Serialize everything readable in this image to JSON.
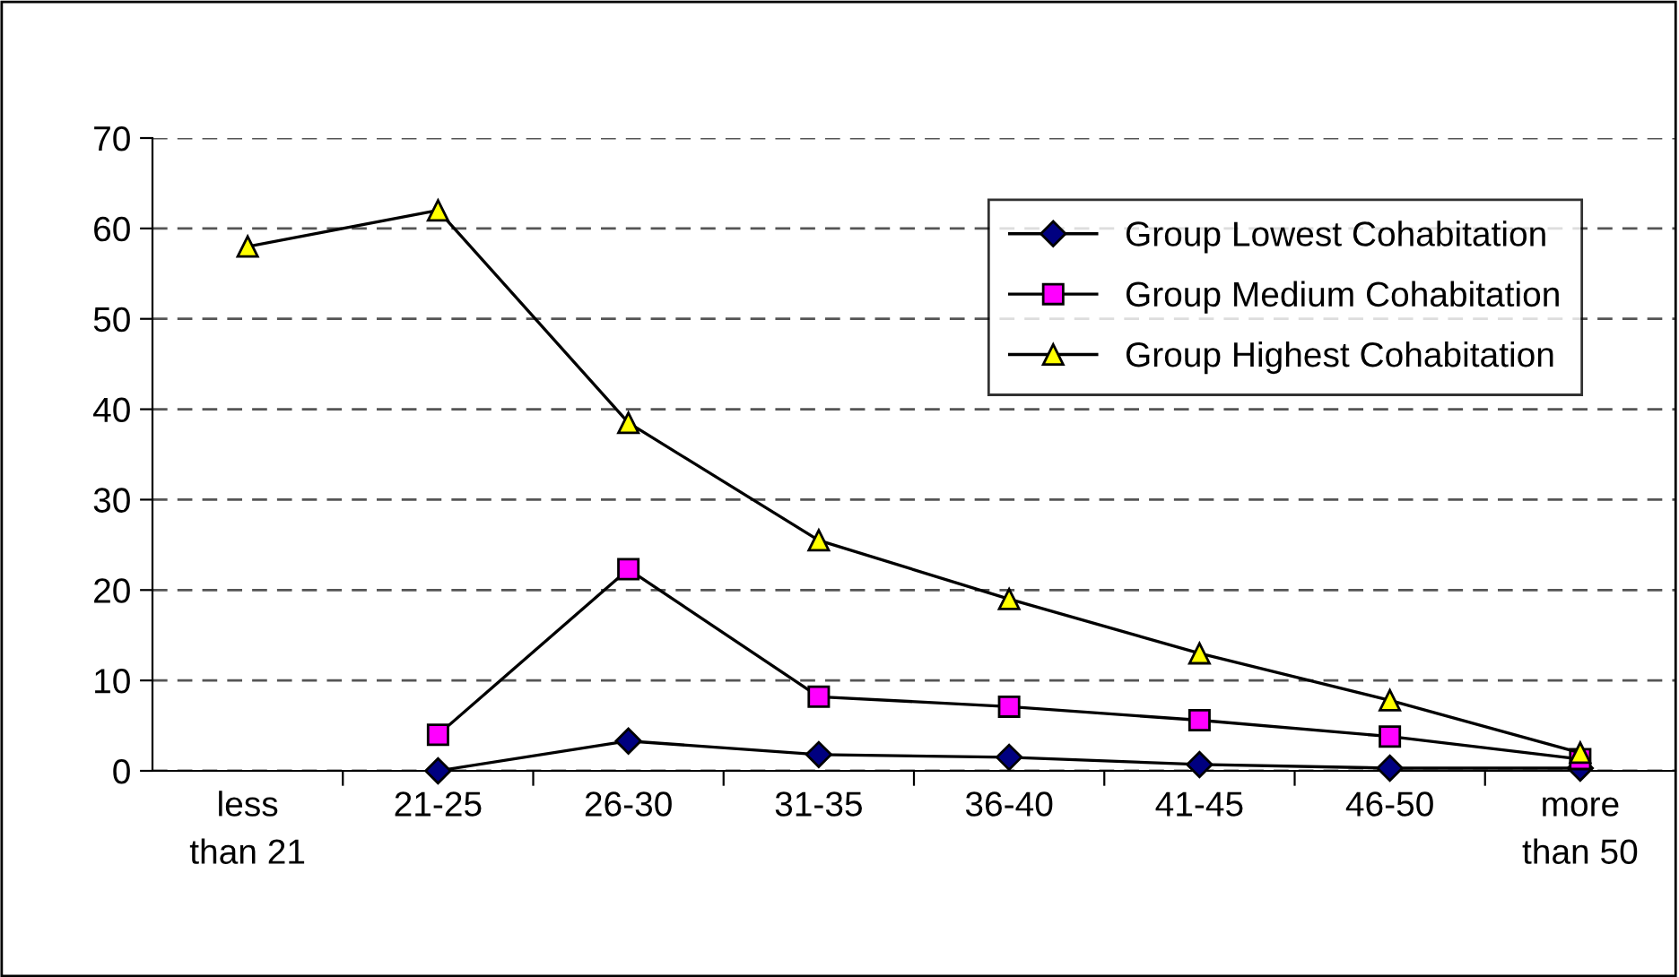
{
  "chart_data": {
    "type": "line",
    "categories": [
      "less\nthan 21",
      "21-25",
      "26-30",
      "31-35",
      "36-40",
      "41-45",
      "46-50",
      "more\nthan 50"
    ],
    "series": [
      {
        "name": "Group Lowest Cohabitation",
        "color": "#000080",
        "marker": "diamond",
        "values": [
          null,
          0,
          3.3,
          1.8,
          1.5,
          0.7,
          0.3,
          0.3
        ]
      },
      {
        "name": "Group Medium Cohabitation",
        "color": "#ff00ff",
        "marker": "square",
        "values": [
          null,
          4,
          22.3,
          8.2,
          7.1,
          5.6,
          3.8,
          1.3
        ]
      },
      {
        "name": "Group Highest Cohabitation",
        "color": "#ffff00",
        "marker": "triangle",
        "values": [
          58,
          62,
          38.5,
          25.5,
          19,
          13,
          7.8,
          2
        ]
      }
    ],
    "ylim": [
      0,
      70
    ],
    "yticks": [
      0,
      10,
      20,
      30,
      40,
      50,
      60,
      70
    ],
    "grid": "y",
    "legend": "top right",
    "line_style": "solid"
  }
}
